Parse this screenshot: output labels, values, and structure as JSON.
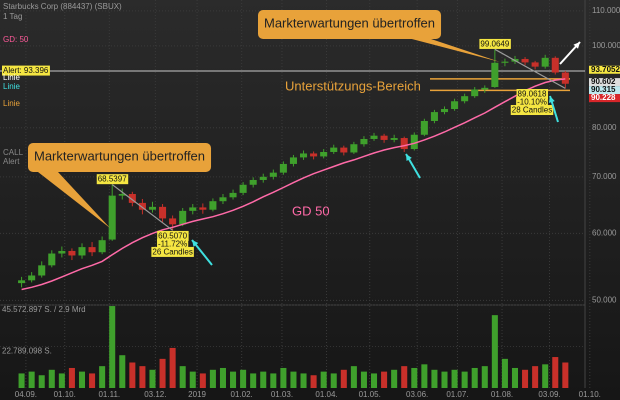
{
  "chart_data": {
    "type": "candlestick",
    "title": "Starbucks Corp (884437) (SBUX)",
    "subtitle": "1 Tag",
    "legend_items": [
      {
        "text": "GD: 50",
        "color": "#ff5a9a"
      },
      {
        "text": "Linie",
        "color": "#ffffff"
      },
      {
        "text": "Linie",
        "color": "#3fe0e0"
      },
      {
        "text": "Linie",
        "color": "#e8a23a"
      },
      {
        "text": "CALL",
        "color": "#888888"
      },
      {
        "text": "Alert",
        "color": "#888888"
      }
    ],
    "alert": {
      "value": 93.396,
      "label": "Alert: 93.396",
      "color": "#ffffff"
    },
    "log_scale": true,
    "grid": true,
    "up_color": "#3fa02c",
    "down_color": "#c8302a",
    "xlim": [
      -15,
      416
    ],
    "xticks": [
      {
        "value": 3,
        "label": "04.09."
      },
      {
        "value": 30,
        "label": "01.10."
      },
      {
        "value": 61,
        "label": "01.11."
      },
      {
        "value": 93,
        "label": "03.12."
      },
      {
        "value": 122,
        "label": "2019"
      },
      {
        "value": 153,
        "label": "01.02."
      },
      {
        "value": 181,
        "label": "01.03."
      },
      {
        "value": 212,
        "label": "01.04."
      },
      {
        "value": 242,
        "label": "01.05."
      },
      {
        "value": 275,
        "label": "03.06."
      },
      {
        "value": 303,
        "label": "01.07."
      },
      {
        "value": 334,
        "label": "01.08."
      },
      {
        "value": 367,
        "label": "03.09."
      },
      {
        "value": 395,
        "label": "01.10."
      }
    ],
    "ylim": [
      48.7,
      112.7
    ],
    "yticks": [
      {
        "value": 50,
        "label": "50.000"
      },
      {
        "value": 60,
        "label": "60.000"
      },
      {
        "value": 70,
        "label": "70.000"
      },
      {
        "value": 80,
        "label": "80.000"
      },
      {
        "value": 100,
        "label": "100.000"
      },
      {
        "value": 110,
        "label": "110.000"
      }
    ],
    "x": [
      0,
      7,
      14,
      21,
      28,
      35,
      42,
      49,
      56,
      63,
      70,
      77,
      84,
      91,
      98,
      105,
      112,
      119,
      126,
      133,
      140,
      147,
      154,
      161,
      168,
      175,
      182,
      189,
      196,
      203,
      210,
      217,
      224,
      231,
      238,
      245,
      252,
      259,
      266,
      273,
      280,
      287,
      294,
      301,
      308,
      315,
      322,
      329,
      336,
      343,
      350,
      357,
      364,
      371,
      378
    ],
    "open": [
      52.4,
      52.8,
      53.5,
      55.0,
      56.8,
      57.2,
      56.5,
      57.8,
      57.0,
      59.0,
      66.5,
      66.8,
      65.2,
      64.0,
      64.5,
      62.5,
      61.5,
      63.8,
      64.4,
      64.0,
      65.5,
      66.2,
      67.0,
      68.5,
      69.4,
      70.0,
      70.8,
      72.5,
      73.8,
      74.6,
      74.0,
      74.9,
      75.8,
      74.8,
      76.5,
      77.6,
      78.3,
      77.4,
      77.8,
      75.5,
      78.5,
      81.5,
      83.5,
      84.2,
      86.0,
      87.2,
      88.8,
      89.4,
      95.5,
      95.8,
      96.5,
      95.6,
      94.5,
      96.8,
      93.0
    ],
    "high": [
      53.3,
      54.0,
      55.6,
      57.3,
      57.9,
      57.6,
      58.4,
      58.6,
      59.5,
      68.54,
      67.8,
      67.2,
      65.9,
      65.4,
      65.0,
      63.0,
      64.3,
      65.0,
      65.1,
      66.0,
      66.8,
      67.6,
      69.0,
      69.9,
      70.6,
      71.4,
      73.0,
      74.3,
      75.2,
      75.0,
      75.5,
      76.4,
      76.2,
      77.0,
      78.2,
      78.9,
      78.7,
      78.5,
      78.1,
      79.0,
      82.0,
      84.0,
      84.8,
      86.6,
      87.8,
      89.4,
      89.8,
      99.06,
      96.6,
      97.3,
      97.0,
      96.0,
      97.6,
      97.2,
      93.4
    ],
    "low": [
      51.8,
      52.5,
      53.2,
      54.7,
      56.2,
      55.8,
      56.0,
      56.4,
      56.7,
      58.8,
      65.8,
      64.6,
      63.2,
      63.5,
      61.9,
      60.51,
      61.2,
      63.2,
      63.3,
      63.7,
      65.0,
      65.8,
      66.6,
      68.0,
      68.9,
      69.5,
      70.4,
      72.0,
      73.3,
      73.4,
      73.6,
      74.5,
      74.2,
      74.5,
      76.0,
      77.2,
      76.8,
      76.9,
      74.9,
      75.2,
      78.2,
      81.0,
      83.0,
      83.8,
      85.5,
      86.8,
      88.0,
      89.2,
      94.6,
      95.2,
      94.9,
      93.8,
      94.0,
      92.5,
      89.06
    ],
    "close": [
      52.8,
      53.5,
      55.0,
      56.8,
      57.2,
      56.5,
      57.8,
      57.0,
      58.9,
      66.5,
      66.8,
      65.2,
      64.0,
      64.5,
      62.5,
      61.5,
      63.8,
      64.4,
      64.0,
      65.5,
      66.2,
      67.0,
      68.5,
      69.4,
      70.0,
      70.8,
      72.5,
      73.8,
      74.6,
      74.0,
      74.9,
      75.8,
      74.8,
      76.5,
      77.6,
      78.3,
      77.4,
      77.8,
      75.5,
      78.5,
      81.5,
      83.5,
      84.2,
      86.0,
      87.2,
      88.8,
      89.2,
      95.5,
      95.8,
      96.5,
      95.6,
      94.5,
      96.8,
      93.0,
      90.2
    ],
    "ma": {
      "name": "GD 50",
      "color": "#ff6aa8",
      "values": [
        51.5,
        51.8,
        52.2,
        52.7,
        53.3,
        53.9,
        54.5,
        55.0,
        55.6,
        56.6,
        57.6,
        58.5,
        59.3,
        60.0,
        60.6,
        61.0,
        61.5,
        62.0,
        62.4,
        62.8,
        63.3,
        63.9,
        64.6,
        65.4,
        66.3,
        67.1,
        68.0,
        68.9,
        69.8,
        70.6,
        71.3,
        72.0,
        72.7,
        73.3,
        74.0,
        74.7,
        75.3,
        75.8,
        76.2,
        76.7,
        77.4,
        78.2,
        79.1,
        80.1,
        81.1,
        82.2,
        83.3,
        84.6,
        85.9,
        87.2,
        88.5,
        89.6,
        90.5,
        91.1,
        91.4
      ]
    },
    "volume": [
      8000000,
      9000000,
      7000000,
      10000000,
      8000000,
      11000000,
      9000000,
      8000000,
      12000000,
      45000000,
      18000000,
      14000000,
      12000000,
      10000000,
      16000000,
      22000000,
      12000000,
      9000000,
      8000000,
      10000000,
      11000000,
      9000000,
      10000000,
      8000000,
      9000000,
      8000000,
      11000000,
      9000000,
      8000000,
      7000000,
      9000000,
      8000000,
      10000000,
      12000000,
      9000000,
      8000000,
      9000000,
      10000000,
      12000000,
      11000000,
      13000000,
      10000000,
      9000000,
      10000000,
      9000000,
      11000000,
      12000000,
      40000000,
      16000000,
      11000000,
      10000000,
      12000000,
      13000000,
      17000000,
      14000000
    ],
    "vlim": [
      0,
      45572897
    ],
    "vticks": [
      {
        "value": 45572897,
        "label": "45.572.897 S. / 2.9 Mrd"
      },
      {
        "value": 22789098,
        "label": "22.789.098 S."
      }
    ],
    "support_zone": {
      "label": "Unterstützungs-Bereich",
      "color": "#e8a23a",
      "values": [
        91.4,
        88.6
      ]
    },
    "price_tags": [
      {
        "value": 93.7052,
        "color": "#f5e642"
      },
      {
        "value": 90.602,
        "color": "#dddddd"
      },
      {
        "value": 90.315,
        "color": "#bfe9ef"
      },
      {
        "value": 90.228,
        "color": "#d8262a"
      }
    ],
    "measurements": [
      {
        "high": 68.5397,
        "high_x": 63,
        "low": {
          "value": 60.507,
          "label": "60.5070"
        },
        "low_x": 105,
        "change": "-11.72%",
        "candles": "26 Candles"
      },
      {
        "high": 99.0649,
        "high_x": 329,
        "low": 89.0618,
        "low_x": 378,
        "change": "-10.10%",
        "candles": "28 Candles"
      }
    ],
    "callouts": [
      "Markterwartungen übertroffen",
      "Markterwartungen übertroffen"
    ]
  }
}
